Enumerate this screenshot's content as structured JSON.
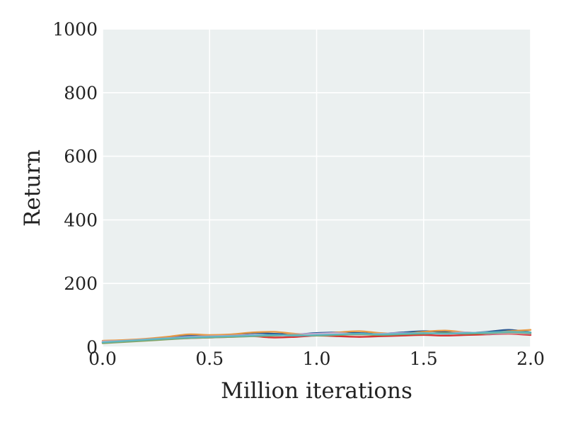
{
  "chart_data": {
    "type": "line",
    "title": "",
    "xlabel": "Million iterations",
    "ylabel": "Return",
    "xlim": [
      0,
      2.0
    ],
    "ylim": [
      0,
      1000
    ],
    "x_ticks": [
      "0.0",
      "0.5",
      "1.0",
      "1.5",
      "2.0"
    ],
    "y_ticks": [
      "0",
      "200",
      "400",
      "600",
      "800",
      "1000"
    ],
    "grid": true,
    "legend": "none",
    "background": "#ebf0f0",
    "x": [
      0.0,
      0.1,
      0.2,
      0.3,
      0.4,
      0.5,
      0.6,
      0.7,
      0.8,
      0.9,
      1.0,
      1.1,
      1.2,
      1.3,
      1.4,
      1.5,
      1.6,
      1.7,
      1.8,
      1.9,
      2.0
    ],
    "series": [
      {
        "color": "#1f4e8c",
        "values": [
          14,
          18,
          24,
          30,
          36,
          34,
          38,
          44,
          42,
          40,
          44,
          46,
          44,
          42,
          46,
          50,
          48,
          44,
          48,
          54,
          46
        ]
      },
      {
        "color": "#e8963c",
        "values": [
          20,
          22,
          26,
          32,
          40,
          38,
          40,
          46,
          48,
          42,
          40,
          46,
          50,
          44,
          42,
          48,
          52,
          46,
          44,
          50,
          54
        ]
      },
      {
        "color": "#d62728",
        "values": [
          16,
          18,
          22,
          26,
          28,
          30,
          32,
          34,
          30,
          32,
          36,
          34,
          32,
          34,
          36,
          38,
          36,
          38,
          40,
          42,
          38
        ]
      },
      {
        "color": "#b8a4d6",
        "values": [
          18,
          20,
          24,
          28,
          32,
          34,
          36,
          38,
          36,
          40,
          42,
          44,
          40,
          42,
          44,
          42,
          44,
          46,
          42,
          44,
          42
        ]
      },
      {
        "color": "#e6b8d4",
        "values": [
          16,
          18,
          22,
          26,
          28,
          30,
          32,
          34,
          36,
          38,
          40,
          42,
          40,
          40,
          42,
          44,
          42,
          44,
          46,
          44,
          44
        ]
      },
      {
        "color": "#7fa05a",
        "values": [
          12,
          16,
          20,
          24,
          28,
          30,
          32,
          34,
          36,
          38,
          36,
          38,
          40,
          38,
          40,
          42,
          44,
          42,
          44,
          46,
          44
        ]
      },
      {
        "color": "#5bb8c4",
        "values": [
          15,
          19,
          23,
          27,
          30,
          32,
          34,
          36,
          38,
          36,
          38,
          40,
          42,
          40,
          42,
          44,
          42,
          44,
          46,
          48,
          46
        ]
      }
    ]
  }
}
